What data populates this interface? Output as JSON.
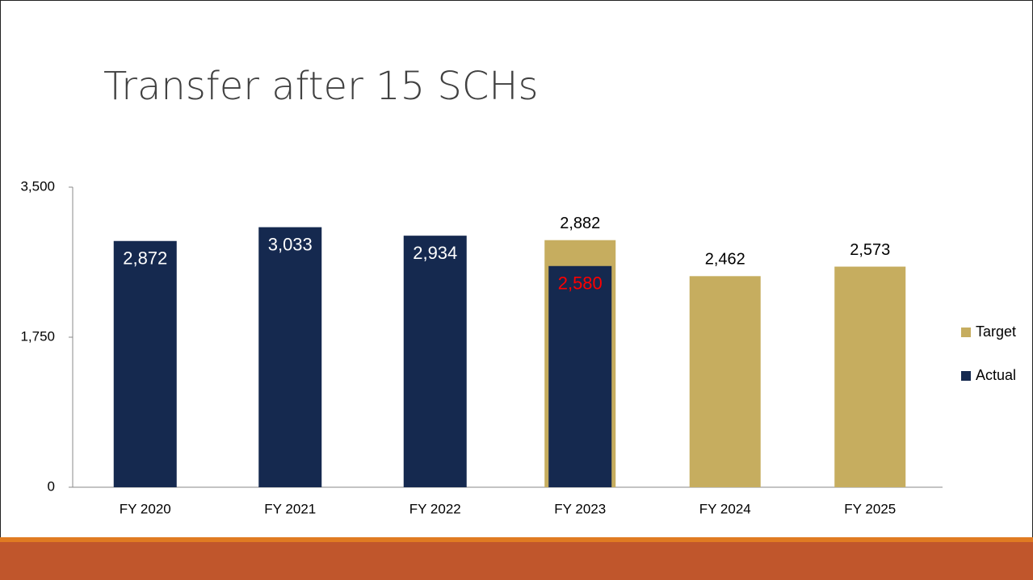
{
  "chart_data": {
    "type": "bar",
    "title": "Transfer after 15 SCHs",
    "categories": [
      "FY 2020",
      "FY 2021",
      "FY 2022",
      "FY 2023",
      "FY 2024",
      "FY 2025"
    ],
    "series": [
      {
        "name": "Target",
        "color": "#c6ad5f",
        "values": [
          null,
          null,
          null,
          2882,
          2462,
          2573
        ],
        "value_labels": [
          null,
          null,
          null,
          "2,882",
          "2,462",
          "2,573"
        ],
        "label_colors": [
          null,
          null,
          null,
          "#000000",
          "#000000",
          "#000000"
        ]
      },
      {
        "name": "Actual",
        "color": "#15294f",
        "values": [
          2872,
          3033,
          2934,
          2580,
          null,
          null
        ],
        "value_labels": [
          "2,872",
          "3,033",
          "2,934",
          "2,580",
          null,
          null
        ],
        "label_colors": [
          "#ffffff",
          "#ffffff",
          "#ffffff",
          "#ff0000",
          null,
          null
        ]
      }
    ],
    "ylim": [
      0,
      3500
    ],
    "yticks": [
      0,
      {
        "value": 1750,
        "label": "1,750"
      },
      {
        "value": 3500,
        "label": "3,500"
      }
    ],
    "legend": "right"
  }
}
